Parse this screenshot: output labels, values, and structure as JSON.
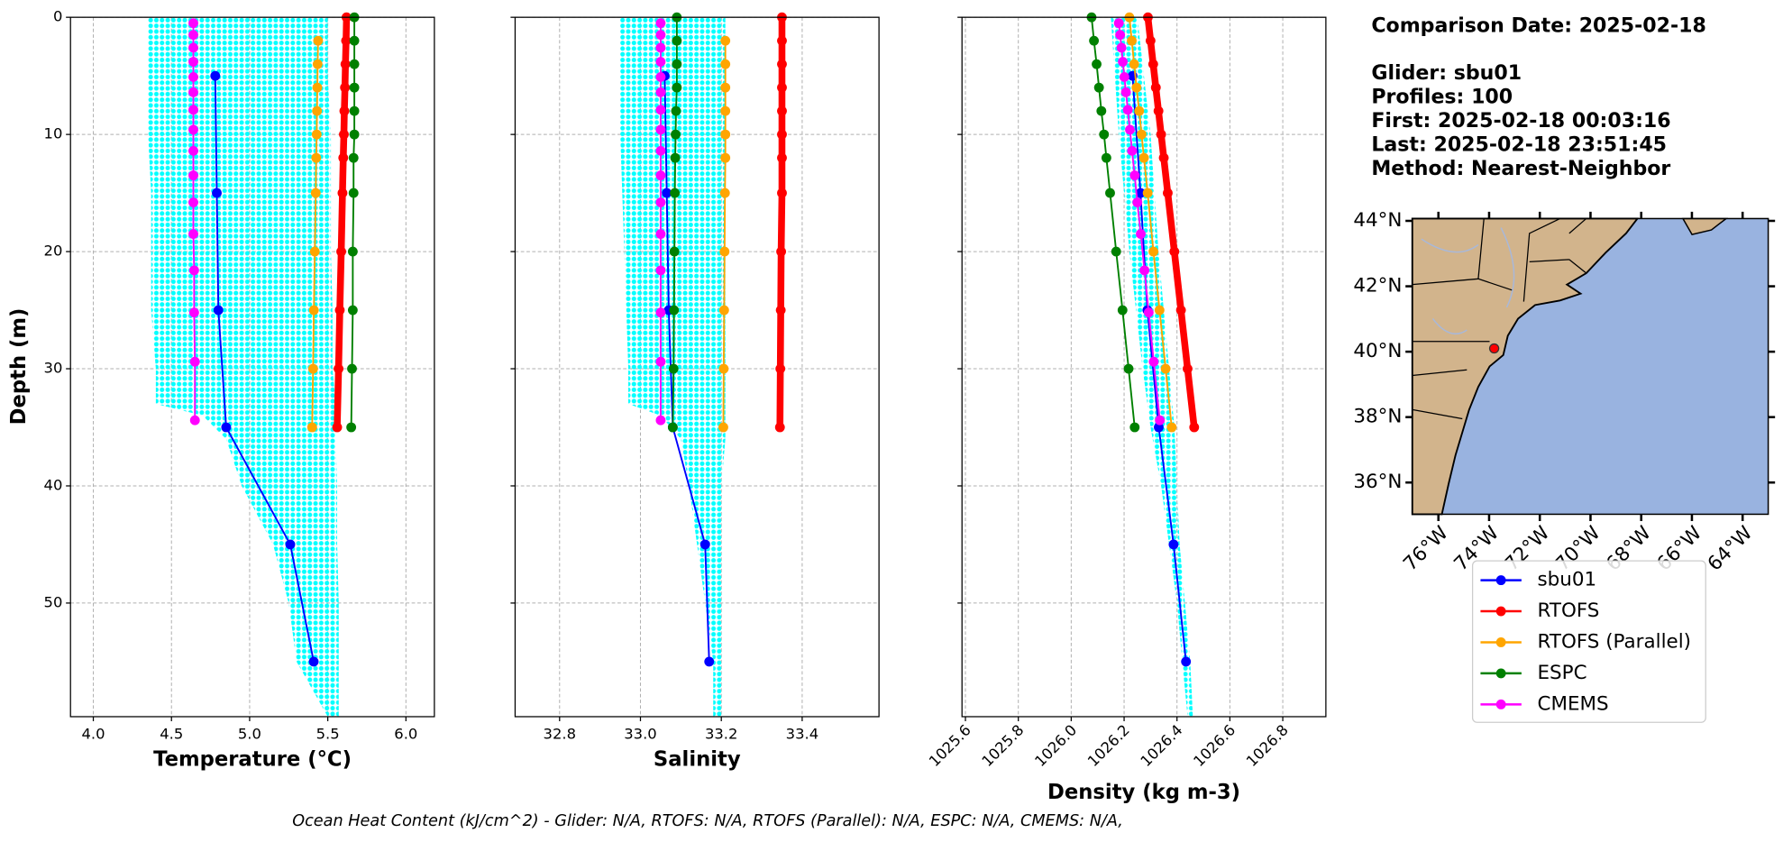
{
  "chart_data": [
    {
      "type": "line",
      "xlabel": "Temperature (°C)",
      "ylabel": "Depth (m)",
      "xlim": [
        3.854,
        6.182
      ],
      "xticks": [
        {
          "value": 4,
          "label": "4.0"
        },
        4.5,
        {
          "value": 5,
          "label": "5.0"
        },
        5.5,
        {
          "value": 6,
          "label": "6.0"
        }
      ],
      "ylim": [
        0,
        59.7
      ],
      "yticks": [
        0,
        10,
        20,
        30,
        40,
        50
      ],
      "y_inverted": true,
      "grid": true,
      "raw": {
        "color": "#00ffff",
        "depth": [
          0,
          5,
          10,
          15,
          20,
          25,
          30,
          33,
          34,
          36,
          40,
          45,
          50,
          55,
          59.7
        ],
        "min": [
          4.35,
          4.35,
          4.35,
          4.37,
          4.37,
          4.37,
          4.4,
          4.4,
          4.7,
          4.85,
          4.95,
          5.15,
          5.25,
          5.3,
          5.5
        ],
        "max": [
          5.5,
          5.5,
          5.52,
          5.52,
          5.52,
          5.53,
          5.53,
          5.55,
          5.55,
          5.55,
          5.56,
          5.56,
          5.57,
          5.57,
          5.57
        ]
      },
      "series": [
        {
          "name": "sbu01",
          "color": "#0000ff",
          "width": 1.5,
          "depth": [
            5,
            15,
            25,
            35,
            45,
            55
          ],
          "values": [
            4.78,
            4.79,
            4.8,
            4.85,
            5.26,
            5.41
          ]
        },
        {
          "name": "RTOFS",
          "color": "#ff0000",
          "width": 6,
          "depth": [
            0,
            2,
            4,
            6,
            8,
            10,
            12,
            15,
            20,
            25,
            30,
            35
          ],
          "values": [
            5.62,
            5.617,
            5.613,
            5.61,
            5.606,
            5.603,
            5.599,
            5.594,
            5.586,
            5.577,
            5.569,
            5.56
          ]
        },
        {
          "name": "RTOFS (Parallel)",
          "color": "#ffa500",
          "width": 1.5,
          "depth": [
            2,
            4,
            6,
            8,
            10,
            12,
            15,
            20,
            25,
            30,
            35
          ],
          "values": [
            5.438,
            5.435,
            5.433,
            5.431,
            5.429,
            5.426,
            5.423,
            5.417,
            5.411,
            5.406,
            5.4
          ]
        },
        {
          "name": "ESPC",
          "color": "#008000",
          "width": 1.5,
          "depth": [
            0,
            2,
            4,
            6,
            8,
            10,
            12,
            15,
            20,
            25,
            30,
            35
          ],
          "values": [
            5.67,
            5.67,
            5.67,
            5.67,
            5.67,
            5.67,
            5.665,
            5.665,
            5.66,
            5.66,
            5.655,
            5.65
          ]
        },
        {
          "name": "CMEMS",
          "color": "#ff00ff",
          "width": 1.5,
          "depth": [
            0.5,
            1.5,
            2.6,
            3.8,
            5.1,
            6.4,
            7.9,
            9.6,
            11.4,
            13.5,
            15.8,
            18.5,
            21.6,
            25.2,
            29.4,
            34.4
          ],
          "values": [
            4.64,
            4.64,
            4.64,
            4.64,
            4.64,
            4.64,
            4.64,
            4.64,
            4.64,
            4.64,
            4.64,
            4.64,
            4.645,
            4.645,
            4.65,
            4.65
          ]
        }
      ]
    },
    {
      "type": "line",
      "xlabel": "Salinity",
      "xlim": [
        32.69,
        33.59
      ],
      "xticks": [
        32.8,
        {
          "value": 33,
          "label": "33.0"
        },
        33.2,
        33.4
      ],
      "ylim": [
        0,
        59.7
      ],
      "yticks": [
        0,
        10,
        20,
        30,
        40,
        50
      ],
      "y_inverted": true,
      "grid": true,
      "raw": {
        "color": "#00ffff",
        "depth": [
          0,
          5,
          10,
          20,
          30,
          33,
          34,
          36,
          40,
          45,
          50,
          55,
          59.7
        ],
        "min": [
          32.95,
          32.95,
          32.95,
          32.96,
          32.97,
          32.97,
          33.05,
          33.1,
          33.12,
          33.14,
          33.16,
          33.18,
          33.18
        ],
        "max": [
          33.21,
          33.21,
          33.21,
          33.21,
          33.21,
          33.21,
          33.21,
          33.21,
          33.2,
          33.2,
          33.2,
          33.2,
          33.2
        ]
      },
      "series": [
        {
          "color": "#0000ff",
          "width": 1.5,
          "depth": [
            5,
            15,
            25,
            35,
            45,
            55
          ],
          "values": [
            33.06,
            33.065,
            33.07,
            33.08,
            33.16,
            33.17
          ]
        },
        {
          "color": "#ff0000",
          "width": 6,
          "depth": [
            0,
            2,
            4,
            6,
            8,
            10,
            12,
            15,
            20,
            25,
            30,
            35
          ],
          "values": [
            33.35,
            33.35,
            33.35,
            33.35,
            33.35,
            33.35,
            33.35,
            33.35,
            33.348,
            33.347,
            33.346,
            33.345
          ]
        },
        {
          "color": "#ffa500",
          "width": 1.5,
          "depth": [
            2,
            4,
            6,
            8,
            10,
            12,
            15,
            20,
            25,
            30,
            35
          ],
          "values": [
            33.21,
            33.21,
            33.21,
            33.21,
            33.21,
            33.21,
            33.209,
            33.208,
            33.207,
            33.206,
            33.205
          ]
        },
        {
          "color": "#008000",
          "width": 1.5,
          "depth": [
            0,
            2,
            4,
            6,
            8,
            10,
            12,
            15,
            20,
            25,
            30,
            35
          ],
          "values": [
            33.09,
            33.09,
            33.09,
            33.09,
            33.088,
            33.087,
            33.086,
            33.085,
            33.084,
            33.083,
            33.082,
            33.08
          ]
        },
        {
          "color": "#ff00ff",
          "width": 1.5,
          "depth": [
            0.5,
            1.5,
            2.6,
            3.8,
            5.1,
            6.4,
            7.9,
            9.6,
            11.4,
            13.5,
            15.8,
            18.5,
            21.6,
            25.2,
            29.4,
            34.4
          ],
          "values": [
            33.05,
            33.05,
            33.05,
            33.05,
            33.05,
            33.05,
            33.05,
            33.05,
            33.05,
            33.05,
            33.05,
            33.05,
            33.05,
            33.05,
            33.05,
            33.05
          ]
        }
      ]
    },
    {
      "type": "line",
      "xlabel": "Density (kg m-3)",
      "xlim": [
        1025.587,
        1026.963
      ],
      "xticks": [
        1025.6,
        1025.8,
        {
          "value": 1026,
          "label": "1026.0"
        },
        1026.2,
        1026.4,
        1026.6,
        1026.8
      ],
      "ylim": [
        0,
        59.7
      ],
      "yticks": [
        0,
        10,
        20,
        30,
        40,
        50
      ],
      "y_inverted": true,
      "grid": true,
      "rotate_xticks": true,
      "raw": {
        "color": "#00ffff",
        "depth": [
          0,
          10,
          20,
          30,
          35,
          40,
          45,
          50,
          55,
          59.7
        ],
        "min": [
          1026.15,
          1026.18,
          1026.22,
          1026.27,
          1026.3,
          1026.34,
          1026.37,
          1026.4,
          1026.42,
          1026.44
        ],
        "max": [
          1026.25,
          1026.3,
          1026.33,
          1026.37,
          1026.39,
          1026.4,
          1026.41,
          1026.43,
          1026.45,
          1026.46
        ]
      },
      "series": [
        {
          "color": "#0000ff",
          "width": 1.5,
          "depth": [
            5,
            15,
            25,
            35,
            45,
            55
          ],
          "values": [
            1026.232,
            1026.262,
            1026.288,
            1026.331,
            1026.387,
            1026.434
          ]
        },
        {
          "color": "#ff0000",
          "width": 6,
          "depth": [
            0,
            2,
            4,
            6,
            8,
            10,
            12,
            15,
            20,
            25,
            30,
            35
          ],
          "values": [
            1026.29,
            1026.3,
            1026.31,
            1026.32,
            1026.33,
            1026.34,
            1026.35,
            1026.365,
            1026.39,
            1026.415,
            1026.44,
            1026.465
          ]
        },
        {
          "color": "#ffa500",
          "width": 1.5,
          "depth": [
            0,
            2,
            4,
            6,
            8,
            10,
            12,
            15,
            20,
            25,
            30,
            35
          ],
          "values": [
            1026.22,
            1026.229,
            1026.238,
            1026.247,
            1026.257,
            1026.266,
            1026.275,
            1026.289,
            1026.311,
            1026.334,
            1026.357,
            1026.38
          ]
        },
        {
          "color": "#008000",
          "width": 1.5,
          "depth": [
            0,
            2,
            4,
            6,
            8,
            10,
            12,
            15,
            20,
            25,
            30,
            35
          ],
          "values": [
            1026.077,
            1026.086,
            1026.096,
            1026.105,
            1026.114,
            1026.124,
            1026.133,
            1026.147,
            1026.17,
            1026.194,
            1026.217,
            1026.24
          ]
        },
        {
          "color": "#ff00ff",
          "width": 1.5,
          "depth": [
            0.5,
            1.5,
            2.6,
            3.8,
            5.1,
            6.4,
            7.9,
            9.6,
            11.4,
            13.5,
            15.8,
            18.5,
            21.6,
            25.2,
            29.4,
            34.4
          ],
          "values": [
            1026.18,
            1026.185,
            1026.19,
            1026.195,
            1026.201,
            1026.207,
            1026.214,
            1026.222,
            1026.23,
            1026.24,
            1026.25,
            1026.263,
            1026.277,
            1026.293,
            1026.312,
            1026.335
          ]
        }
      ]
    }
  ],
  "info": [
    "Comparison Date: 2025-02-18",
    "Glider: sbu01",
    "Profiles: 100",
    "First: 2025-02-18 00:03:16",
    "Last: 2025-02-18 23:51:45",
    "Method: Nearest-Neighbor"
  ],
  "map": {
    "lonlim": [
      -77.03,
      -62.99
    ],
    "latlim": [
      35.03,
      44.07
    ],
    "lat_ticks": [
      {
        "value": 44,
        "label": "44°N"
      },
      {
        "value": 42,
        "label": "42°N"
      },
      {
        "value": 40,
        "label": "40°N"
      },
      {
        "value": 38,
        "label": "38°N"
      },
      {
        "value": 36,
        "label": "36°N"
      }
    ],
    "lon_ticks": [
      {
        "value": -76,
        "label": "76°W"
      },
      {
        "value": -74,
        "label": "74°W"
      },
      {
        "value": -72,
        "label": "72°W"
      },
      {
        "value": -70,
        "label": "70°W"
      },
      {
        "value": -68,
        "label": "68°W"
      },
      {
        "value": -66,
        "label": "66°W"
      },
      {
        "value": -64,
        "label": "64°W"
      }
    ],
    "glider": {
      "lon": -73.8,
      "lat": 40.1,
      "color": "#ff0000"
    }
  },
  "footer": "Ocean Heat Content (kJ/cm^2) - Glider: N/A,  RTOFS: N/A,  RTOFS (Parallel): N/A,  ESPC: N/A,  CMEMS: N/A,"
}
